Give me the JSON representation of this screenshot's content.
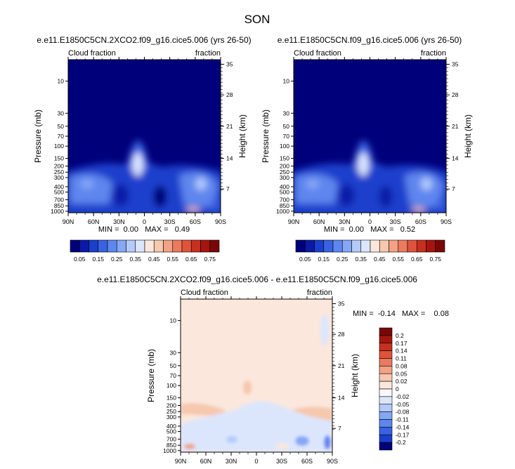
{
  "figure": {
    "title": "SON"
  },
  "chart_data": [
    {
      "type": "heatmap",
      "id": "panel_a",
      "title": "e.e11.E1850C5CN.2XCO2.f09_g16.cice5.006 (yrs 26-50)",
      "left_label": "Cloud fraction",
      "right_label": "fraction",
      "xlabel": "",
      "ylabel": "Pressure (mb)",
      "ylabel_right": "Height (km)",
      "x_ticks": [
        "90N",
        "60N",
        "30N",
        "0",
        "30S",
        "60S",
        "90S"
      ],
      "y_ticks": [
        "10",
        "30",
        "50",
        "70",
        "100",
        "150",
        "200",
        "250",
        "300",
        "400",
        "500",
        "700",
        "850",
        "1000"
      ],
      "y_ticks_right": [
        "35",
        "28",
        "21",
        "14",
        "7"
      ],
      "stats": "MIN =  0.00   MAX =   0.49",
      "colorbar_levels": [
        "0.05",
        "0.15",
        "0.25",
        "0.35",
        "0.45",
        "0.55",
        "0.65",
        "0.75"
      ],
      "colors": [
        "#00007a",
        "#0a1aa6",
        "#1a3fcc",
        "#3a62e0",
        "#5f86ee",
        "#86a7f5",
        "#b4cbfa",
        "#dbe6fd",
        "#fbe7dc",
        "#f6c8ad",
        "#f2a285",
        "#ec7a5e",
        "#e0533b",
        "#c7301e",
        "#a5150e",
        "#7a0707"
      ]
    },
    {
      "type": "heatmap",
      "id": "panel_b",
      "title": "e.e11.E1850C5CN.f09_g16.cice5.006 (yrs 26-50)",
      "left_label": "Cloud fraction",
      "right_label": "fraction",
      "xlabel": "",
      "ylabel": "Pressure (mb)",
      "ylabel_right": "Height (km)",
      "x_ticks": [
        "90N",
        "60N",
        "30N",
        "0",
        "30S",
        "60S",
        "90S"
      ],
      "y_ticks": [
        "10",
        "30",
        "50",
        "70",
        "100",
        "150",
        "200",
        "250",
        "300",
        "400",
        "500",
        "700",
        "850",
        "1000"
      ],
      "y_ticks_right": [
        "35",
        "28",
        "21",
        "14",
        "7"
      ],
      "stats": "MIN =  0.00   MAX =   0.52",
      "colorbar_levels": [
        "0.05",
        "0.15",
        "0.25",
        "0.35",
        "0.45",
        "0.55",
        "0.65",
        "0.75"
      ],
      "colors": [
        "#00007a",
        "#0a1aa6",
        "#1a3fcc",
        "#3a62e0",
        "#5f86ee",
        "#86a7f5",
        "#b4cbfa",
        "#dbe6fd",
        "#fbe7dc",
        "#f6c8ad",
        "#f2a285",
        "#ec7a5e",
        "#e0533b",
        "#c7301e",
        "#a5150e",
        "#7a0707"
      ]
    },
    {
      "type": "heatmap",
      "id": "panel_diff",
      "title": "e.e11.E1850C5CN.2XCO2.f09_g16.cice5.006 - e.e11.E1850C5CN.f09_g16.cice5.006",
      "left_label": "Cloud fraction",
      "right_label": "fraction",
      "xlabel": "",
      "ylabel": "Pressure (mb)",
      "ylabel_right": "Height (km)",
      "x_ticks": [
        "90N",
        "60N",
        "30N",
        "0",
        "30S",
        "60S",
        "90S"
      ],
      "y_ticks": [
        "10",
        "30",
        "50",
        "70",
        "100",
        "150",
        "200",
        "250",
        "300",
        "400",
        "500",
        "700",
        "850",
        "1000"
      ],
      "y_ticks_right": [
        "35",
        "28",
        "21",
        "14",
        "7"
      ],
      "stats": "MIN =  -0.14   MAX =    0.08",
      "colorbar_levels": [
        "0.2",
        "0.17",
        "0.14",
        "0.11",
        "0.08",
        "0.05",
        "0.02",
        "0",
        "-0.02",
        "-0.05",
        "-0.08",
        "-0.11",
        "-0.14",
        "-0.17",
        "-0.2"
      ],
      "colors": [
        "#7a0707",
        "#a5150e",
        "#c7301e",
        "#e0533b",
        "#ec7a5e",
        "#f2a285",
        "#f6c8ad",
        "#fbe7dc",
        "#f7f7fc",
        "#dbe6fd",
        "#b4cbfa",
        "#86a7f5",
        "#5f86ee",
        "#3a62e0",
        "#1a3fcc",
        "#00007a"
      ]
    }
  ]
}
